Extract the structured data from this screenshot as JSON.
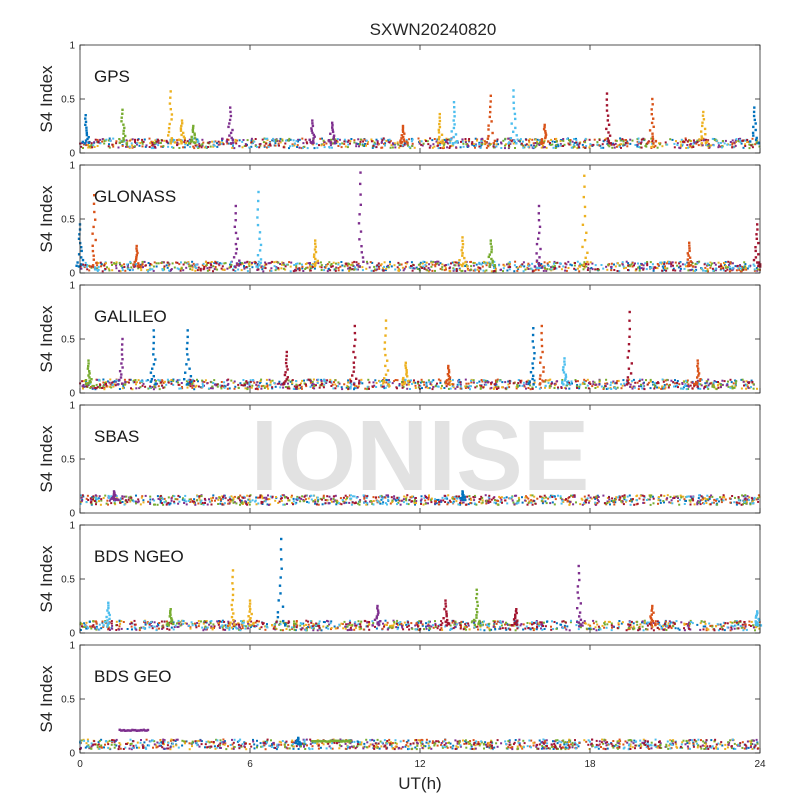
{
  "figure": {
    "title": "SXWN20240820",
    "watermark": "IONISE",
    "xlabel": "UT(h)"
  },
  "chart_data": {
    "type": "scatter",
    "title": "SXWN20240820",
    "xlabel": "UT(h)",
    "xlim": [
      0,
      24
    ],
    "xticks": [
      0,
      6,
      12,
      18,
      24
    ],
    "grid": false,
    "marker": "small square dots",
    "series_colors": [
      "#0072BD",
      "#D95319",
      "#EDB120",
      "#7E2F8E",
      "#77AC30",
      "#4DBEEE",
      "#A2142F"
    ],
    "panels": [
      {
        "label": "GPS",
        "ylabel": "S4 Index",
        "ylim": [
          0,
          1
        ],
        "yticks": [
          0,
          0.5,
          1
        ],
        "baseline": 0.09,
        "spikes": [
          {
            "x": 0.2,
            "peak": 0.35,
            "color": "#0072BD"
          },
          {
            "x": 1.5,
            "peak": 0.4,
            "color": "#77AC30"
          },
          {
            "x": 3.2,
            "peak": 0.57,
            "color": "#EDB120"
          },
          {
            "x": 3.6,
            "peak": 0.3,
            "color": "#EDB120"
          },
          {
            "x": 4.0,
            "peak": 0.25,
            "color": "#77AC30"
          },
          {
            "x": 5.3,
            "peak": 0.42,
            "color": "#7E2F8E"
          },
          {
            "x": 8.2,
            "peak": 0.3,
            "color": "#7E2F8E"
          },
          {
            "x": 8.9,
            "peak": 0.28,
            "color": "#7E2F8E"
          },
          {
            "x": 11.4,
            "peak": 0.25,
            "color": "#D95319"
          },
          {
            "x": 12.7,
            "peak": 0.36,
            "color": "#EDB120"
          },
          {
            "x": 13.2,
            "peak": 0.47,
            "color": "#4DBEEE"
          },
          {
            "x": 14.5,
            "peak": 0.53,
            "color": "#D95319"
          },
          {
            "x": 15.3,
            "peak": 0.58,
            "color": "#4DBEEE"
          },
          {
            "x": 16.4,
            "peak": 0.26,
            "color": "#D95319"
          },
          {
            "x": 18.6,
            "peak": 0.55,
            "color": "#A2142F"
          },
          {
            "x": 20.2,
            "peak": 0.5,
            "color": "#D95319"
          },
          {
            "x": 22.0,
            "peak": 0.38,
            "color": "#EDB120"
          },
          {
            "x": 23.8,
            "peak": 0.42,
            "color": "#0072BD"
          }
        ]
      },
      {
        "label": "GLONASS",
        "ylabel": "S4 Index",
        "ylim": [
          0,
          1
        ],
        "yticks": [
          0,
          0.5,
          1
        ],
        "baseline": 0.06,
        "spikes": [
          {
            "x": 0.0,
            "peak": 0.45,
            "color": "#0072BD"
          },
          {
            "x": 0.5,
            "peak": 0.72,
            "color": "#D95319"
          },
          {
            "x": 2.0,
            "peak": 0.25,
            "color": "#D95319"
          },
          {
            "x": 5.5,
            "peak": 0.62,
            "color": "#7E2F8E"
          },
          {
            "x": 6.3,
            "peak": 0.75,
            "color": "#4DBEEE"
          },
          {
            "x": 8.3,
            "peak": 0.3,
            "color": "#EDB120"
          },
          {
            "x": 9.9,
            "peak": 0.93,
            "color": "#7E2F8E"
          },
          {
            "x": 13.5,
            "peak": 0.33,
            "color": "#EDB120"
          },
          {
            "x": 14.5,
            "peak": 0.3,
            "color": "#77AC30"
          },
          {
            "x": 16.2,
            "peak": 0.62,
            "color": "#7E2F8E"
          },
          {
            "x": 17.8,
            "peak": 0.9,
            "color": "#EDB120"
          },
          {
            "x": 21.5,
            "peak": 0.28,
            "color": "#D95319"
          },
          {
            "x": 23.9,
            "peak": 0.45,
            "color": "#A2142F"
          }
        ]
      },
      {
        "label": "GALILEO",
        "ylabel": "S4 Index",
        "ylim": [
          0,
          1
        ],
        "yticks": [
          0,
          0.5,
          1
        ],
        "baseline": 0.08,
        "spikes": [
          {
            "x": 0.3,
            "peak": 0.3,
            "color": "#77AC30"
          },
          {
            "x": 1.5,
            "peak": 0.5,
            "color": "#7E2F8E"
          },
          {
            "x": 2.6,
            "peak": 0.58,
            "color": "#0072BD"
          },
          {
            "x": 3.8,
            "peak": 0.58,
            "color": "#0072BD"
          },
          {
            "x": 7.3,
            "peak": 0.38,
            "color": "#A2142F"
          },
          {
            "x": 9.7,
            "peak": 0.62,
            "color": "#A2142F"
          },
          {
            "x": 10.8,
            "peak": 0.67,
            "color": "#EDB120"
          },
          {
            "x": 11.5,
            "peak": 0.28,
            "color": "#EDB120"
          },
          {
            "x": 13.0,
            "peak": 0.25,
            "color": "#D95319"
          },
          {
            "x": 16.0,
            "peak": 0.6,
            "color": "#0072BD"
          },
          {
            "x": 16.3,
            "peak": 0.62,
            "color": "#D95319"
          },
          {
            "x": 17.1,
            "peak": 0.32,
            "color": "#4DBEEE"
          },
          {
            "x": 19.4,
            "peak": 0.75,
            "color": "#A2142F"
          },
          {
            "x": 21.8,
            "peak": 0.3,
            "color": "#D95319"
          }
        ]
      },
      {
        "label": "SBAS",
        "ylabel": "S4 Index",
        "ylim": [
          0,
          1
        ],
        "yticks": [
          0,
          0.5,
          1
        ],
        "baseline": 0.12,
        "spikes": [
          {
            "x": 1.2,
            "peak": 0.2,
            "color": "#7E2F8E"
          },
          {
            "x": 13.5,
            "peak": 0.2,
            "color": "#0072BD"
          }
        ]
      },
      {
        "label": "BDS NGEO",
        "ylabel": "S4 Index",
        "ylim": [
          0,
          1
        ],
        "yticks": [
          0,
          0.5,
          1
        ],
        "baseline": 0.07,
        "spikes": [
          {
            "x": 1.0,
            "peak": 0.28,
            "color": "#4DBEEE"
          },
          {
            "x": 3.2,
            "peak": 0.22,
            "color": "#77AC30"
          },
          {
            "x": 5.4,
            "peak": 0.58,
            "color": "#EDB120"
          },
          {
            "x": 6.0,
            "peak": 0.3,
            "color": "#EDB120"
          },
          {
            "x": 7.1,
            "peak": 0.87,
            "color": "#0072BD"
          },
          {
            "x": 10.5,
            "peak": 0.25,
            "color": "#7E2F8E"
          },
          {
            "x": 12.9,
            "peak": 0.3,
            "color": "#A2142F"
          },
          {
            "x": 14.0,
            "peak": 0.4,
            "color": "#77AC30"
          },
          {
            "x": 15.4,
            "peak": 0.22,
            "color": "#A2142F"
          },
          {
            "x": 17.6,
            "peak": 0.62,
            "color": "#7E2F8E"
          },
          {
            "x": 20.2,
            "peak": 0.25,
            "color": "#D95319"
          },
          {
            "x": 23.9,
            "peak": 0.2,
            "color": "#4DBEEE"
          }
        ]
      },
      {
        "label": "BDS GEO",
        "ylabel": "S4 Index",
        "ylim": [
          0,
          1
        ],
        "yticks": [
          0,
          0.5,
          1
        ],
        "baseline": 0.08,
        "spikes": [
          {
            "x": 7.7,
            "peak": 0.14,
            "color": "#0072BD"
          }
        ],
        "segments": [
          {
            "x_start": 1.4,
            "x_end": 2.4,
            "value": 0.21,
            "color": "#7E2F8E"
          },
          {
            "x_start": 8.2,
            "x_end": 9.6,
            "value": 0.11,
            "color": "#77AC30"
          }
        ]
      }
    ]
  }
}
